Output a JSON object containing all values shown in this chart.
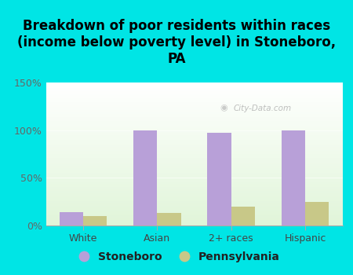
{
  "title": "Breakdown of poor residents within races\n(income below poverty level) in Stoneboro,\nPA",
  "categories": [
    "White",
    "Asian",
    "2+ races",
    "Hispanic"
  ],
  "stoneboro_values": [
    14,
    100,
    97,
    100
  ],
  "pennsylvania_values": [
    10,
    13,
    20,
    25
  ],
  "stoneboro_color": "#b8a0d8",
  "pennsylvania_color": "#c8c888",
  "background_outer": "#00e5e5",
  "ylim": [
    0,
    150
  ],
  "yticks": [
    0,
    50,
    100,
    150
  ],
  "ytick_labels": [
    "0%",
    "50%",
    "100%",
    "150%"
  ],
  "bar_width": 0.32,
  "legend_labels": [
    "Stoneboro",
    "Pennsylvania"
  ],
  "watermark": "City-Data.com",
  "title_fontsize": 12,
  "legend_fontsize": 10
}
